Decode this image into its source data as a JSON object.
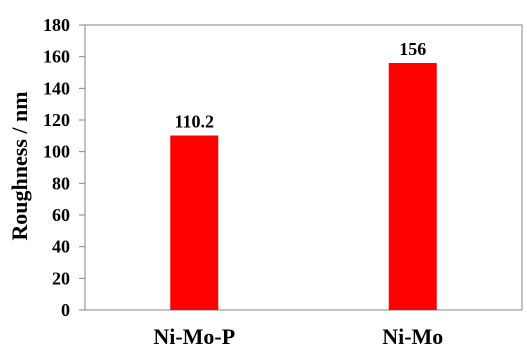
{
  "chart_data": {
    "type": "bar",
    "title": "",
    "xlabel": "",
    "ylabel": "Roughness / nm",
    "categories": [
      "Ni-Mo-P",
      "Ni-Mo"
    ],
    "series": [
      {
        "values": [
          110.2,
          156
        ]
      }
    ],
    "data_labels": [
      "110.2",
      "156"
    ],
    "ylim": [
      0,
      180
    ],
    "yticks": [
      0,
      20,
      40,
      60,
      80,
      100,
      120,
      140,
      160,
      180
    ],
    "ytick_labels": [
      "0",
      "20",
      "40",
      "60",
      "80",
      "100",
      "120",
      "140",
      "160",
      "180"
    ],
    "grid": false,
    "legend": false,
    "colors": {
      "bar": "#ff0000",
      "axis": "#868686",
      "text": "#000000"
    }
  }
}
